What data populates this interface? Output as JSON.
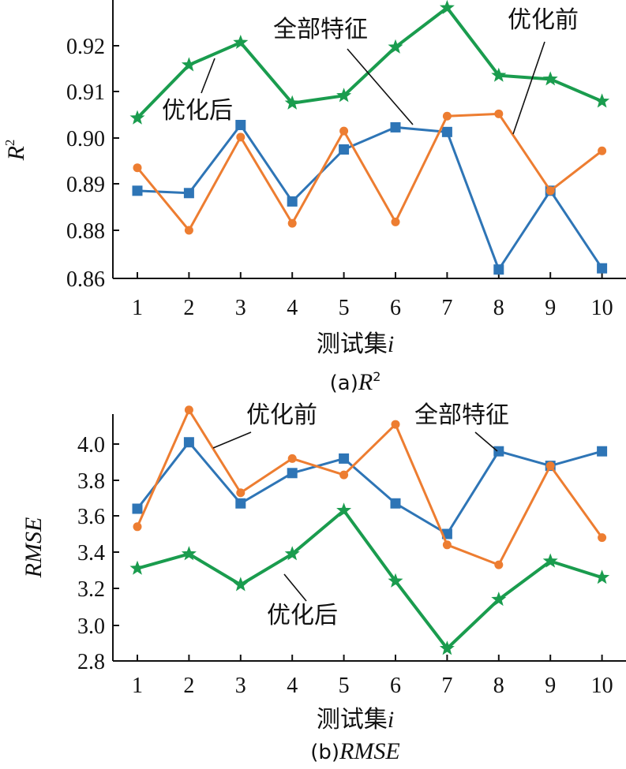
{
  "chart_data": [
    {
      "type": "line",
      "caption": {
        "prefix": "(a)",
        "var": "R",
        "sup": "2"
      },
      "xlabel": {
        "text": "测试集",
        "var": "i"
      },
      "ylabel": {
        "var": "R",
        "sup": "2"
      },
      "ylim": [
        0.86,
        0.93
      ],
      "yticks": [
        0.86,
        0.88,
        0.89,
        0.9,
        0.91,
        0.92
      ],
      "ytick_labels": [
        "0.86",
        "0.88",
        "0.89",
        "0.90",
        "0.91",
        "0.92"
      ],
      "categories": [
        "1",
        "2",
        "3",
        "4",
        "5",
        "6",
        "7",
        "8",
        "9",
        "10"
      ],
      "series": [
        {
          "name": "全部特征",
          "color": "#2e75b6",
          "marker": "square",
          "values": [
            0.8885,
            0.888,
            0.9028,
            0.8862,
            0.8975,
            0.9023,
            0.9013,
            0.8637,
            0.8885,
            0.8642
          ]
        },
        {
          "name": "优化前",
          "color": "#ed7d31",
          "marker": "circle",
          "values": [
            0.8935,
            0.88,
            0.9002,
            0.8815,
            0.9015,
            0.8818,
            0.9047,
            0.9052,
            0.8885,
            0.8972
          ]
        },
        {
          "name": "优化后",
          "color": "#1a9c4e",
          "marker": "star",
          "values": [
            0.9043,
            0.9158,
            0.9207,
            0.9075,
            0.9091,
            0.9197,
            0.9283,
            0.9135,
            0.9127,
            0.9079
          ]
        }
      ]
    },
    {
      "type": "line",
      "caption": {
        "prefix": "(b)",
        "var": "RMSE",
        "sup": ""
      },
      "xlabel": {
        "text": "测试集",
        "var": "i"
      },
      "ylabel": {
        "var": "RMSE",
        "sup": ""
      },
      "ylim": [
        2.8,
        4.15
      ],
      "yticks": [
        2.8,
        3.0,
        3.2,
        3.4,
        3.6,
        3.8,
        4.0
      ],
      "ytick_labels": [
        "2.8",
        "3.0",
        "3.2",
        "3.4",
        "3.6",
        "3.8",
        "4.0"
      ],
      "categories": [
        "1",
        "2",
        "3",
        "4",
        "5",
        "6",
        "7",
        "8",
        "9",
        "10"
      ],
      "series": [
        {
          "name": "全部特征",
          "color": "#2e75b6",
          "marker": "square",
          "values": [
            3.64,
            4.01,
            3.67,
            3.84,
            3.92,
            3.67,
            3.5,
            3.96,
            3.88,
            3.96
          ]
        },
        {
          "name": "优化前",
          "color": "#ed7d31",
          "marker": "circle",
          "values": [
            3.54,
            4.19,
            3.73,
            3.92,
            3.83,
            4.11,
            3.44,
            3.33,
            3.88,
            3.48
          ]
        },
        {
          "name": "优化后",
          "color": "#1a9c4e",
          "marker": "star",
          "values": [
            3.31,
            3.39,
            3.22,
            3.39,
            3.63,
            3.24,
            2.87,
            3.14,
            3.35,
            3.26
          ]
        }
      ]
    }
  ]
}
